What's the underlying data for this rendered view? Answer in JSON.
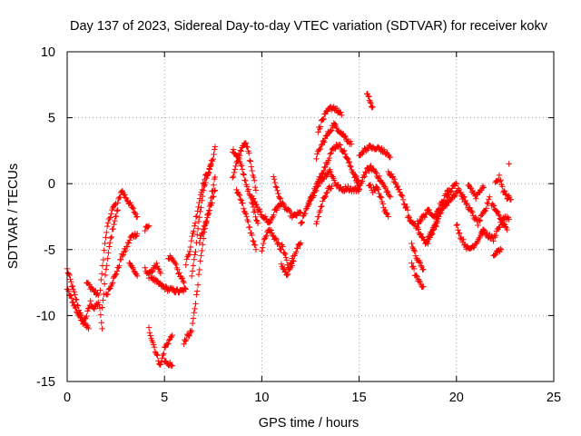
{
  "chart_data": {
    "type": "scatter",
    "title": "Day 137 of 2023, Sidereal Day-to-day VTEC variation (SDTVAR) for receiver kokv",
    "xlabel": "GPS time / hours",
    "ylabel": "SDTVAR / TECUs",
    "xlim": [
      0,
      25
    ],
    "ylim": [
      -15,
      10
    ],
    "xticks": [
      0,
      5,
      10,
      15,
      20,
      25
    ],
    "yticks": [
      -15,
      -10,
      -5,
      0,
      5,
      10
    ],
    "grid": true,
    "marker": "+",
    "color": "#ff0000",
    "series": [
      {
        "name": "SDTVAR",
        "x": [],
        "y": []
      }
    ],
    "segments": [
      [
        [
          0.0,
          -6.5
        ],
        [
          0.2,
          -7.5
        ],
        [
          0.4,
          -8.5
        ],
        [
          0.6,
          -9.5
        ],
        [
          0.8,
          -10.5
        ],
        [
          1.0,
          -10.0
        ],
        [
          1.2,
          -9.0
        ],
        [
          1.4,
          -9.5
        ],
        [
          1.6,
          -9.0
        ]
      ],
      [
        [
          0.0,
          -8.0
        ],
        [
          0.3,
          -9.0
        ],
        [
          0.6,
          -10.0
        ],
        [
          0.9,
          -10.5
        ],
        [
          1.1,
          -11.0
        ]
      ],
      [
        [
          1.0,
          -7.5
        ],
        [
          1.3,
          -8.0
        ],
        [
          1.6,
          -8.5
        ],
        [
          1.8,
          -11.0
        ]
      ],
      [
        [
          1.8,
          -9.5
        ],
        [
          2.0,
          -6.5
        ],
        [
          2.2,
          -4.5
        ],
        [
          2.4,
          -3.0
        ],
        [
          2.6,
          -2.0
        ]
      ],
      [
        [
          1.7,
          -8.0
        ],
        [
          1.9,
          -5.0
        ],
        [
          2.1,
          -3.0
        ],
        [
          2.3,
          -2.0
        ],
        [
          2.5,
          -1.5
        ]
      ],
      [
        [
          2.6,
          -1.5
        ],
        [
          2.8,
          -0.5
        ],
        [
          3.0,
          -1.0
        ],
        [
          3.2,
          -1.5
        ],
        [
          3.4,
          -2.0
        ],
        [
          3.6,
          -2.5
        ]
      ],
      [
        [
          2.0,
          -8.5
        ],
        [
          2.3,
          -7.5
        ],
        [
          2.6,
          -6.5
        ],
        [
          2.8,
          -5.5
        ],
        [
          3.0,
          -5.0
        ],
        [
          3.3,
          -4.0
        ],
        [
          3.6,
          -3.8
        ]
      ],
      [
        [
          3.2,
          -6.0
        ],
        [
          3.4,
          -6.5
        ],
        [
          3.6,
          -7.0
        ]
      ],
      [
        [
          4.0,
          -3.5
        ],
        [
          4.2,
          -3.2
        ]
      ],
      [
        [
          4.0,
          -6.5
        ],
        [
          4.3,
          -7.0
        ],
        [
          4.6,
          -7.5
        ],
        [
          4.9,
          -7.8
        ],
        [
          5.2,
          -8.0
        ],
        [
          5.5,
          -8.1
        ],
        [
          5.8,
          -8.2
        ],
        [
          6.1,
          -8.0
        ]
      ],
      [
        [
          4.2,
          -11.0
        ],
        [
          4.4,
          -12.0
        ],
        [
          4.6,
          -13.0
        ],
        [
          4.8,
          -13.8
        ],
        [
          5.0,
          -12.5
        ],
        [
          5.2,
          -12.0
        ],
        [
          5.4,
          -11.5
        ]
      ],
      [
        [
          4.2,
          -7.0
        ],
        [
          4.4,
          -6.5
        ],
        [
          4.6,
          -6.2
        ],
        [
          4.8,
          -6.8
        ]
      ],
      [
        [
          5.0,
          -13.5
        ],
        [
          5.2,
          -13.6
        ],
        [
          5.4,
          -13.8
        ]
      ],
      [
        [
          5.2,
          -5.5
        ],
        [
          5.5,
          -6.0
        ],
        [
          5.8,
          -7.0
        ],
        [
          6.0,
          -7.5
        ]
      ],
      [
        [
          6.0,
          -12.0
        ],
        [
          6.2,
          -11.5
        ],
        [
          6.4,
          -11.2
        ],
        [
          6.6,
          -9.0
        ],
        [
          6.8,
          -6.5
        ],
        [
          7.0,
          -4.0
        ],
        [
          7.2,
          -2.5
        ],
        [
          7.4,
          -1.0
        ],
        [
          7.6,
          0.5
        ]
      ],
      [
        [
          6.1,
          -6.0
        ],
        [
          6.3,
          -5.0
        ],
        [
          6.5,
          -3.5
        ],
        [
          6.7,
          -2.0
        ],
        [
          6.9,
          -0.5
        ],
        [
          7.1,
          0.5
        ],
        [
          7.3,
          1.0
        ],
        [
          7.5,
          2.0
        ],
        [
          7.6,
          2.8
        ]
      ],
      [
        [
          6.4,
          -7.0
        ],
        [
          6.6,
          -5.0
        ],
        [
          6.8,
          -2.5
        ],
        [
          7.0,
          -0.5
        ],
        [
          7.2,
          0.5
        ],
        [
          7.4,
          1.5
        ]
      ],
      [
        [
          6.8,
          -4.5
        ],
        [
          7.0,
          -3.5
        ],
        [
          7.2,
          -2.5
        ],
        [
          7.4,
          -1.5
        ],
        [
          7.6,
          -0.5
        ]
      ],
      [
        [
          8.5,
          2.5
        ],
        [
          8.8,
          2.0
        ],
        [
          9.0,
          1.0
        ],
        [
          9.2,
          0.0
        ],
        [
          9.4,
          -1.0
        ],
        [
          9.6,
          -2.0
        ],
        [
          9.8,
          -3.0
        ]
      ],
      [
        [
          8.5,
          0.5
        ],
        [
          8.7,
          1.5
        ],
        [
          8.9,
          2.5
        ],
        [
          9.1,
          3.2
        ],
        [
          9.3,
          2.5
        ],
        [
          9.5,
          1.0
        ],
        [
          9.7,
          -0.5
        ]
      ],
      [
        [
          8.7,
          -0.5
        ],
        [
          8.9,
          -1.0
        ],
        [
          9.1,
          -2.0
        ],
        [
          9.3,
          -3.0
        ],
        [
          9.5,
          -4.0
        ],
        [
          9.7,
          -5.0
        ]
      ],
      [
        [
          9.5,
          -1.0
        ],
        [
          9.8,
          -2.0
        ],
        [
          10.1,
          -2.5
        ],
        [
          10.4,
          -3.0
        ],
        [
          10.7,
          -2.0
        ],
        [
          11.0,
          -1.5
        ],
        [
          11.3,
          -2.0
        ],
        [
          11.6,
          -2.5
        ],
        [
          12.0,
          -2.2
        ]
      ],
      [
        [
          10.0,
          -5.0
        ],
        [
          10.2,
          -4.0
        ],
        [
          10.4,
          -3.5
        ],
        [
          10.6,
          -4.0
        ],
        [
          10.8,
          -4.5
        ],
        [
          11.0,
          -5.0
        ]
      ],
      [
        [
          10.6,
          0.5
        ],
        [
          10.8,
          -0.5
        ],
        [
          11.0,
          -1.5
        ]
      ],
      [
        [
          11.0,
          -4.5
        ],
        [
          11.2,
          -5.5
        ],
        [
          11.4,
          -6.5
        ],
        [
          11.6,
          -6.0
        ],
        [
          11.8,
          -5.0
        ],
        [
          12.0,
          -4.5
        ]
      ],
      [
        [
          11.0,
          -6.0
        ],
        [
          11.3,
          -7.0
        ],
        [
          11.6,
          -5.5
        ]
      ],
      [
        [
          12.0,
          -3.0
        ],
        [
          12.3,
          -2.0
        ],
        [
          12.6,
          -1.0
        ],
        [
          12.9,
          0.0
        ],
        [
          13.2,
          0.5
        ],
        [
          13.5,
          1.0
        ],
        [
          13.8,
          0.0
        ],
        [
          14.1,
          -0.5
        ],
        [
          14.4,
          -0.3
        ],
        [
          14.7,
          -0.5
        ],
        [
          15.0,
          -0.4
        ]
      ],
      [
        [
          12.4,
          -1.5
        ],
        [
          12.7,
          -0.5
        ],
        [
          13.0,
          0.5
        ],
        [
          13.3,
          1.5
        ],
        [
          13.6,
          2.5
        ],
        [
          13.9,
          3.0
        ],
        [
          14.2,
          2.5
        ],
        [
          14.5,
          1.5
        ],
        [
          14.8,
          0.5
        ],
        [
          15.0,
          0.0
        ]
      ],
      [
        [
          12.8,
          -3.0
        ],
        [
          13.0,
          -2.0
        ],
        [
          13.2,
          -1.0
        ],
        [
          13.4,
          -0.5
        ],
        [
          13.6,
          -0.2
        ]
      ],
      [
        [
          12.8,
          2.0
        ],
        [
          13.1,
          3.0
        ],
        [
          13.4,
          3.8
        ],
        [
          13.7,
          4.5
        ],
        [
          14.0,
          4.0
        ],
        [
          14.3,
          3.5
        ],
        [
          14.6,
          3.0
        ]
      ],
      [
        [
          12.9,
          4.0
        ],
        [
          13.1,
          4.8
        ],
        [
          13.3,
          5.3
        ],
        [
          13.5,
          5.7
        ],
        [
          13.7,
          5.8
        ],
        [
          13.9,
          5.5
        ],
        [
          14.1,
          5.2
        ]
      ],
      [
        [
          14.8,
          0.5
        ],
        [
          15.0,
          -0.5
        ],
        [
          15.2,
          0.5
        ],
        [
          15.4,
          1.0
        ],
        [
          15.6,
          1.2
        ],
        [
          15.8,
          1.0
        ],
        [
          16.0,
          0.5
        ],
        [
          16.2,
          0.0
        ],
        [
          16.4,
          -0.5
        ],
        [
          16.6,
          -1.0
        ]
      ],
      [
        [
          15.0,
          2.0
        ],
        [
          15.2,
          2.5
        ],
        [
          15.4,
          2.7
        ],
        [
          15.6,
          2.8
        ],
        [
          15.8,
          2.6
        ],
        [
          16.0,
          2.7
        ],
        [
          16.2,
          2.5
        ],
        [
          16.4,
          2.3
        ],
        [
          16.6,
          2.0
        ]
      ],
      [
        [
          15.4,
          6.8
        ],
        [
          15.5,
          6.5
        ],
        [
          15.6,
          6.0
        ],
        [
          15.7,
          5.8
        ]
      ],
      [
        [
          15.5,
          0.0
        ],
        [
          15.7,
          -0.5
        ],
        [
          15.9,
          -0.3
        ],
        [
          16.1,
          -1.0
        ],
        [
          16.3,
          -2.0
        ],
        [
          16.5,
          -2.5
        ]
      ],
      [
        [
          16.5,
          1.0
        ],
        [
          16.7,
          0.5
        ],
        [
          16.9,
          0.0
        ],
        [
          17.1,
          -0.5
        ],
        [
          17.3,
          -1.5
        ],
        [
          17.5,
          -2.0
        ]
      ],
      [
        [
          17.5,
          -2.5
        ],
        [
          17.8,
          -3.0
        ],
        [
          18.0,
          -3.5
        ],
        [
          18.2,
          -4.0
        ],
        [
          18.4,
          -4.5
        ],
        [
          18.6,
          -4.0
        ],
        [
          18.8,
          -3.5
        ],
        [
          19.0,
          -3.0
        ]
      ],
      [
        [
          17.7,
          -4.5
        ],
        [
          17.9,
          -5.5
        ],
        [
          18.1,
          -6.0
        ],
        [
          18.3,
          -6.5
        ]
      ],
      [
        [
          17.7,
          -6.0
        ],
        [
          17.9,
          -7.0
        ],
        [
          18.1,
          -7.5
        ],
        [
          18.3,
          -7.8
        ]
      ],
      [
        [
          18.0,
          -3.0
        ],
        [
          18.3,
          -2.5
        ],
        [
          18.6,
          -2.0
        ],
        [
          18.9,
          -2.5
        ],
        [
          19.2,
          -2.0
        ],
        [
          19.5,
          -1.5
        ],
        [
          19.8,
          -1.0
        ],
        [
          20.1,
          -0.5
        ],
        [
          20.4,
          -1.0
        ]
      ],
      [
        [
          18.5,
          -4.5
        ],
        [
          18.8,
          -3.5
        ],
        [
          19.1,
          -2.5
        ],
        [
          19.4,
          -1.5
        ],
        [
          19.7,
          -0.5
        ],
        [
          20.0,
          0.0
        ]
      ],
      [
        [
          19.0,
          -2.0
        ],
        [
          19.2,
          -1.5
        ],
        [
          19.4,
          -1.0
        ],
        [
          19.6,
          -0.5
        ]
      ],
      [
        [
          20.0,
          -3.0
        ],
        [
          20.2,
          -4.0
        ],
        [
          20.4,
          -4.5
        ],
        [
          20.6,
          -5.0
        ],
        [
          20.8,
          -4.8
        ],
        [
          21.0,
          -4.5
        ],
        [
          21.2,
          -4.0
        ],
        [
          21.4,
          -3.5
        ]
      ],
      [
        [
          20.3,
          -1.0
        ],
        [
          20.5,
          -1.5
        ],
        [
          20.7,
          -2.0
        ],
        [
          20.9,
          -2.5
        ],
        [
          21.1,
          -3.0
        ],
        [
          21.3,
          -2.5
        ],
        [
          21.5,
          -2.0
        ],
        [
          21.7,
          -1.0
        ]
      ],
      [
        [
          20.6,
          0.0
        ],
        [
          20.8,
          -0.5
        ],
        [
          21.0,
          -1.0
        ],
        [
          21.2,
          -0.5
        ],
        [
          21.4,
          -0.3
        ]
      ],
      [
        [
          21.3,
          -3.5
        ],
        [
          21.5,
          -3.8
        ],
        [
          21.7,
          -4.0
        ],
        [
          21.9,
          -4.2
        ],
        [
          22.1,
          -3.5
        ],
        [
          22.3,
          -3.0
        ],
        [
          22.5,
          -2.5
        ],
        [
          22.7,
          -2.7
        ]
      ],
      [
        [
          21.8,
          -1.5
        ],
        [
          22.0,
          -2.0
        ],
        [
          22.2,
          -2.5
        ],
        [
          22.4,
          -3.0
        ],
        [
          22.6,
          -3.5
        ]
      ],
      [
        [
          21.9,
          -5.5
        ],
        [
          22.1,
          -5.2
        ],
        [
          22.3,
          -5.0
        ]
      ],
      [
        [
          22.0,
          0.0
        ],
        [
          22.2,
          0.5
        ],
        [
          22.4,
          -0.5
        ],
        [
          22.6,
          -1.0
        ],
        [
          22.8,
          -1.2
        ]
      ],
      [
        [
          22.7,
          1.5
        ]
      ]
    ]
  }
}
